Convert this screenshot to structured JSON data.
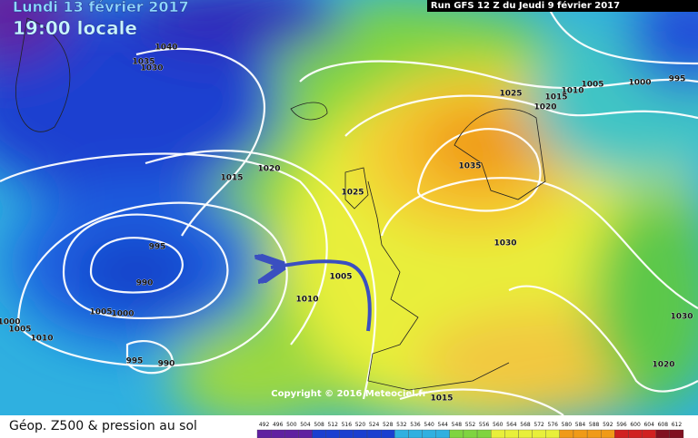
{
  "header": {
    "date": "Lundi 13 février 2017",
    "time": "19:00 locale",
    "run": "Run GFS 12 Z du Jeudi 9 février 2017"
  },
  "copyright": "Copyright © 2016 Meteociel.fr",
  "legend": {
    "title": "Géop. Z500 & pression au sol",
    "scale": [
      492,
      496,
      500,
      504,
      508,
      512,
      516,
      520,
      524,
      528,
      532,
      536,
      540,
      544,
      548,
      552,
      556,
      560,
      564,
      568,
      572,
      576,
      580,
      584,
      588,
      592,
      596,
      600,
      604,
      608,
      612
    ]
  },
  "isobars": [
    1040,
    1035,
    1030,
    1015,
    1020,
    1025,
    1035,
    1025,
    1020,
    1015,
    1010,
    1005,
    1000,
    995,
    1030,
    995,
    990,
    1005,
    1010,
    1005,
    1000,
    1000,
    1005,
    1010,
    995,
    990,
    1015,
    1030,
    1020
  ]
}
